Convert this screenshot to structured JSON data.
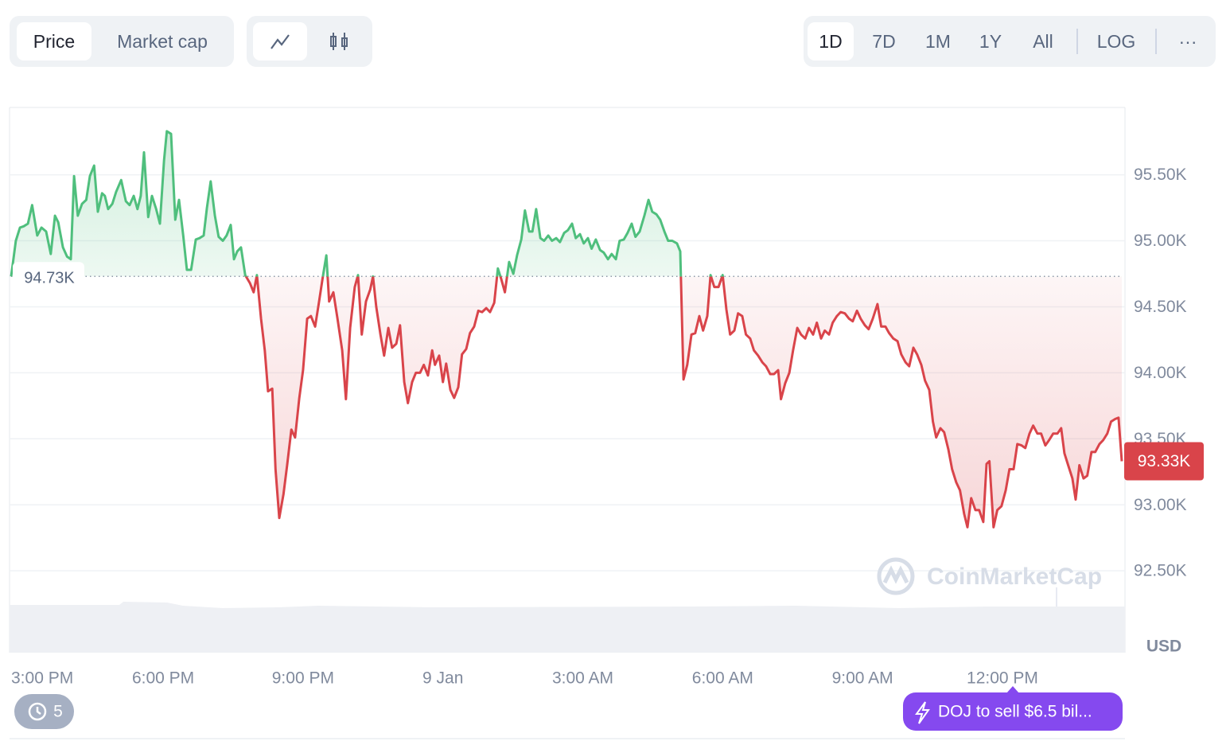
{
  "toolbar": {
    "tabs": [
      "Price",
      "Market cap"
    ],
    "ranges": [
      "1D",
      "7D",
      "1M",
      "1Y",
      "All",
      "LOG"
    ],
    "more": "···"
  },
  "history_count": "5",
  "news": "DOJ to sell $6.5 bil...",
  "chart_data": {
    "type": "line",
    "currency": "USD",
    "watermark": "CoinMarketCap",
    "colors": {
      "up": "#4fbf7d",
      "down": "#d9444a"
    },
    "xlim": [
      14.74,
      38.56
    ],
    "ylim": [
      91880,
      96010
    ],
    "xticks": [
      {
        "value": 15,
        "label": "3:00 PM"
      },
      {
        "value": 18,
        "label": "6:00 PM"
      },
      {
        "value": 21,
        "label": "9:00 PM"
      },
      {
        "value": 24,
        "label": "9 Jan"
      },
      {
        "value": 27,
        "label": "3:00 AM"
      },
      {
        "value": 30,
        "label": "6:00 AM"
      },
      {
        "value": 33,
        "label": "9:00 AM"
      },
      {
        "value": 36,
        "label": "12:00 PM"
      }
    ],
    "yticks": [
      {
        "value": 92500,
        "label": "92.50K"
      },
      {
        "value": 93000,
        "label": "93.00K"
      },
      {
        "value": 93500,
        "label": "93.50K"
      },
      {
        "value": 94000,
        "label": "94.00K"
      },
      {
        "value": 94500,
        "label": "94.50K"
      },
      {
        "value": 95000,
        "label": "95.00K"
      },
      {
        "value": 95500,
        "label": "95.50K"
      }
    ],
    "grid": true,
    "baseline": {
      "value": 94730,
      "label": "94.73K"
    },
    "last_price": {
      "value": 93330,
      "label": "93.33K"
    },
    "x": [
      14.74,
      14.84,
      14.93,
      15.01,
      15.1,
      15.19,
      15.3,
      15.39,
      15.49,
      15.59,
      15.68,
      15.75,
      15.85,
      15.94,
      16.02,
      16.09,
      16.17,
      16.26,
      16.35,
      16.43,
      16.52,
      16.6,
      16.69,
      16.75,
      16.82,
      16.91,
      16.99,
      17.1,
      17.2,
      17.28,
      17.37,
      17.45,
      17.52,
      17.59,
      17.68,
      17.76,
      17.85,
      17.93,
      18.02,
      18.08,
      18.17,
      18.26,
      18.34,
      18.43,
      18.51,
      18.6,
      18.7,
      18.78,
      18.87,
      18.94,
      19.02,
      19.11,
      19.19,
      19.28,
      19.36,
      19.45,
      19.52,
      19.59,
      19.67,
      19.76,
      19.86,
      19.94,
      20.01,
      20.1,
      20.18,
      20.25,
      20.34,
      20.41,
      20.49,
      20.58,
      20.66,
      20.75,
      20.83,
      20.92,
      21.0,
      21.09,
      21.17,
      21.26,
      21.34,
      21.43,
      21.5,
      21.56,
      21.65,
      21.74,
      21.84,
      21.92,
      22.01,
      22.11,
      22.18,
      22.26,
      22.35,
      22.44,
      22.5,
      22.57,
      22.66,
      22.74,
      22.83,
      22.91,
      23.0,
      23.08,
      23.17,
      23.25,
      23.34,
      23.42,
      23.51,
      23.59,
      23.68,
      23.77,
      23.83,
      23.92,
      24.0,
      24.07,
      24.16,
      24.24,
      24.33,
      24.41,
      24.5,
      24.58,
      24.67,
      24.76,
      24.84,
      24.93,
      25.01,
      25.1,
      25.18,
      25.25,
      25.33,
      25.42,
      25.51,
      25.59,
      25.68,
      25.76,
      25.85,
      25.92,
      26.0,
      26.09,
      26.17,
      26.26,
      26.34,
      26.43,
      26.51,
      26.6,
      26.68,
      26.77,
      26.85,
      26.94,
      27.02,
      27.11,
      27.19,
      27.28,
      27.37,
      27.45,
      27.54,
      27.62,
      27.71,
      27.79,
      27.88,
      27.96,
      28.05,
      28.13,
      28.22,
      28.32,
      28.41,
      28.49,
      28.58,
      28.66,
      28.75,
      28.83,
      28.92,
      29.02,
      29.09,
      29.16,
      29.24,
      29.33,
      29.41,
      29.5,
      29.58,
      29.67,
      29.74,
      29.82,
      29.91,
      30.0,
      30.08,
      30.16,
      30.25,
      30.33,
      30.42,
      30.5,
      30.59,
      30.67,
      30.76,
      30.85,
      30.93,
      31.02,
      31.1,
      31.19,
      31.25,
      31.34,
      31.43,
      31.51,
      31.6,
      31.68,
      31.77,
      31.85,
      31.94,
      32.02,
      32.11,
      32.19,
      32.28,
      32.36,
      32.45,
      32.53,
      32.62,
      32.71,
      32.79,
      32.88,
      32.96,
      33.05,
      33.13,
      33.22,
      33.32,
      33.4,
      33.49,
      33.57,
      33.66,
      33.75,
      33.83,
      33.92,
      34.0,
      34.09,
      34.17,
      34.26,
      34.34,
      34.43,
      34.51,
      34.58,
      34.67,
      34.75,
      34.84,
      34.92,
      35.01,
      35.09,
      35.18,
      35.25,
      35.33,
      35.42,
      35.5,
      35.59,
      35.66,
      35.72,
      35.81,
      35.89,
      35.98,
      36.07,
      36.15,
      36.24,
      36.32,
      36.41,
      36.49,
      36.58,
      36.66,
      36.75,
      36.83,
      36.92,
      37.0,
      37.09,
      37.18,
      37.26,
      37.33,
      37.41,
      37.5,
      37.57,
      37.65,
      37.74,
      37.82,
      37.91,
      37.99,
      38.08,
      38.16,
      38.25,
      38.33,
      38.42,
      38.49,
      38.56
    ],
    "values": [
      94730,
      95000,
      95100,
      95110,
      95130,
      95270,
      95040,
      95100,
      95070,
      94900,
      95190,
      95140,
      94950,
      94880,
      94860,
      95490,
      95190,
      95280,
      95310,
      95490,
      95570,
      95220,
      95360,
      95340,
      95240,
      95280,
      95370,
      95460,
      95300,
      95270,
      95340,
      95240,
      95340,
      95670,
      95180,
      95340,
      95240,
      95130,
      95610,
      95830,
      95810,
      95160,
      95310,
      95040,
      94780,
      94780,
      95010,
      95020,
      95040,
      95250,
      95450,
      95190,
      95030,
      95000,
      95040,
      95120,
      94860,
      94920,
      94950,
      94740,
      94680,
      94610,
      94740,
      94410,
      94170,
      93860,
      93880,
      93270,
      92900,
      93080,
      93300,
      93570,
      93510,
      93810,
      94020,
      94410,
      94430,
      94350,
      94530,
      94740,
      94890,
      94540,
      94610,
      94410,
      94170,
      93800,
      94340,
      94650,
      94740,
      94290,
      94540,
      94630,
      94730,
      94500,
      94290,
      94130,
      94340,
      94190,
      94220,
      94360,
      93930,
      93770,
      93930,
      94000,
      94000,
      94060,
      93980,
      94170,
      94060,
      94130,
      93930,
      94070,
      93870,
      93810,
      93890,
      94140,
      94180,
      94300,
      94350,
      94470,
      94460,
      94490,
      94460,
      94530,
      94790,
      94710,
      94610,
      94840,
      94750,
      94890,
      95010,
      95230,
      95070,
      95070,
      95240,
      95020,
      95000,
      95040,
      95000,
      95020,
      94990,
      95060,
      95080,
      95130,
      95020,
      95050,
      94980,
      95020,
      94940,
      95010,
      94930,
      94910,
      94860,
      94900,
      94860,
      95000,
      95010,
      95060,
      95130,
      95030,
      95070,
      95190,
      95310,
      95220,
      95200,
      95160,
      95070,
      95000,
      95000,
      94980,
      94920,
      93950,
      94060,
      94290,
      94300,
      94430,
      94320,
      94430,
      94740,
      94650,
      94650,
      94740,
      94480,
      94290,
      94320,
      94450,
      94430,
      94290,
      94260,
      94170,
      94130,
      94080,
      94050,
      93990,
      93990,
      94020,
      93800,
      93920,
      94000,
      94170,
      94340,
      94290,
      94260,
      94340,
      94290,
      94380,
      94260,
      94320,
      94290,
      94380,
      94430,
      94460,
      94450,
      94410,
      94390,
      94470,
      94410,
      94360,
      94330,
      94410,
      94520,
      94350,
      94350,
      94300,
      94260,
      94240,
      94140,
      94080,
      94050,
      94190,
      94140,
      94060,
      93940,
      93870,
      93630,
      93510,
      93580,
      93550,
      93420,
      93270,
      93170,
      93110,
      92930,
      92830,
      93050,
      92960,
      92960,
      92870,
      93310,
      93330,
      92830,
      92960,
      92990,
      93110,
      93270,
      93270,
      93460,
      93450,
      93430,
      93540,
      93600,
      93540,
      93540,
      93450,
      93490,
      93540,
      93540,
      93580,
      93390,
      93300,
      93200,
      93040,
      93300,
      93200,
      93220,
      93400,
      93400,
      93460,
      93490,
      93540,
      93630,
      93650,
      93660,
      93330
    ]
  }
}
